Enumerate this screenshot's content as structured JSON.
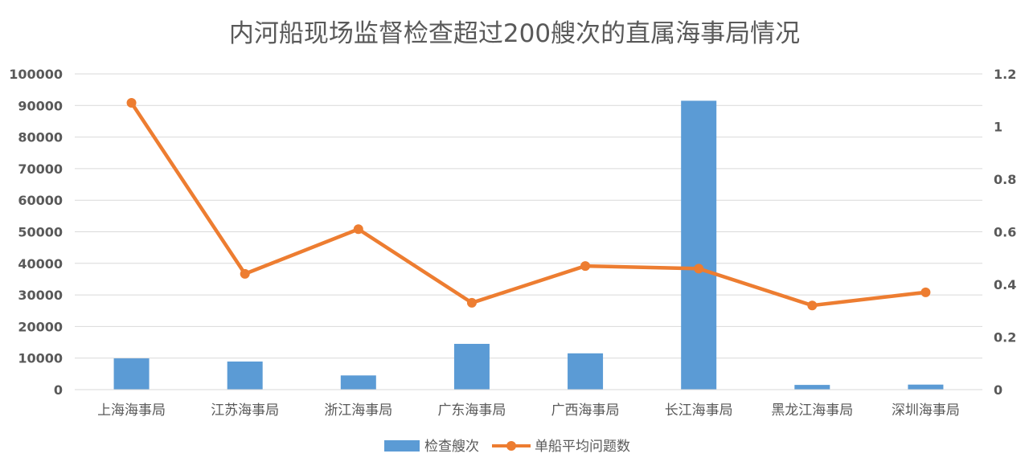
{
  "chart_data": {
    "type": "bar",
    "title": "内河船现场监督检查超过200艘次的直属海事局情况",
    "categories": [
      "上海海事局",
      "江苏海事局",
      "浙江海事局",
      "广东海事局",
      "广西海事局",
      "长江海事局",
      "黑龙江海事局",
      "深圳海事局"
    ],
    "series": [
      {
        "name": "检查艘次",
        "type": "bar",
        "axis": "left",
        "color": "#5b9bd5",
        "values": [
          9900,
          8900,
          4500,
          14500,
          11500,
          91500,
          1500,
          1600
        ]
      },
      {
        "name": "单船平均问题数",
        "type": "line",
        "axis": "right",
        "color": "#ed7d31",
        "values": [
          1.09,
          0.44,
          0.61,
          0.33,
          0.47,
          0.46,
          0.32,
          0.37
        ]
      }
    ],
    "y_left": {
      "min": 0,
      "max": 100000,
      "step": 10000,
      "ticks": [
        "0",
        "10000",
        "20000",
        "30000",
        "40000",
        "50000",
        "60000",
        "70000",
        "80000",
        "90000",
        "100000"
      ]
    },
    "y_right": {
      "min": 0,
      "max": 1.2,
      "step": 0.2,
      "ticks": [
        "0",
        "0.2",
        "0.4",
        "0.6",
        "0.8",
        "1",
        "1.2"
      ]
    },
    "grid": true,
    "legend_position": "bottom"
  }
}
